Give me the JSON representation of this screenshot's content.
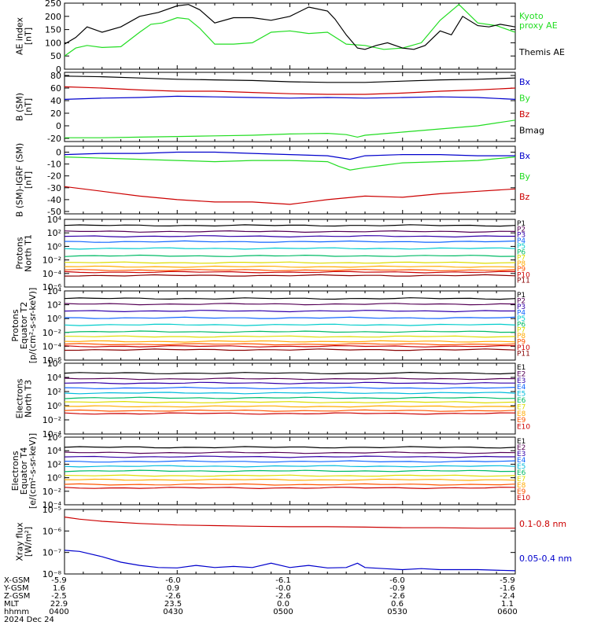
{
  "footer": {
    "date": "2024 Dec 24",
    "rows": [
      {
        "label": "X-GSM",
        "values": [
          "-5.9",
          "-6.0",
          "-6.1",
          "-6.0",
          "-5.9"
        ]
      },
      {
        "label": "Y-GSM",
        "values": [
          "1.6",
          "0.9",
          "-0.0",
          "-0.9",
          "-1.6"
        ]
      },
      {
        "label": "Z-GSM",
        "values": [
          "-2.5",
          "-2.6",
          "-2.6",
          "-2.6",
          "-2.4"
        ]
      },
      {
        "label": "MLT",
        "values": [
          "22.9",
          "23.5",
          "0.0",
          "0.6",
          "1.1"
        ]
      },
      {
        "label": "hhmm",
        "values": [
          "0400",
          "0430",
          "0500",
          "0530",
          "0600"
        ]
      }
    ]
  },
  "colors": {
    "black": "#000000",
    "green": "#22dd22",
    "blue": "#0000cc",
    "red": "#cc0000",
    "p_series": [
      "#000000",
      "#550055",
      "#3300aa",
      "#1166ff",
      "#00cccc",
      "#00bb66",
      "#dddd00",
      "#ffaa00",
      "#ff5500",
      "#cc0000",
      "#880000"
    ],
    "e_series": [
      "#000000",
      "#550055",
      "#3300aa",
      "#1166ff",
      "#00bbdd",
      "#00bb66",
      "#dddd00",
      "#ffaa00",
      "#ff5500",
      "#cc0000"
    ]
  },
  "chart_data": [
    {
      "id": "ae",
      "type": "line",
      "ylabel": [
        "AE index",
        "[nT]"
      ],
      "ylim": [
        0,
        250
      ],
      "yticks": [
        {
          "v": 0,
          "t": "0"
        },
        {
          "v": 50,
          "t": "50"
        },
        {
          "v": 100,
          "t": "100"
        },
        {
          "v": 150,
          "t": "150"
        },
        {
          "v": 200,
          "t": "200"
        },
        {
          "v": 250,
          "t": "250"
        }
      ],
      "legend_placement": "right",
      "series": [
        {
          "name": "Kyoto proxy AE",
          "color": "#22dd22",
          "legend": [
            "Kyoto",
            "proxy AE"
          ],
          "x": [
            240,
            243,
            246,
            250,
            255,
            260,
            263,
            266,
            270,
            273,
            276,
            280,
            285,
            290,
            295,
            300,
            305,
            310,
            315,
            320,
            325,
            330,
            335,
            340,
            345,
            350,
            355,
            360
          ],
          "y": [
            50,
            80,
            90,
            82,
            85,
            140,
            170,
            175,
            195,
            190,
            155,
            95,
            95,
            100,
            140,
            145,
            135,
            140,
            95,
            90,
            75,
            80,
            100,
            185,
            245,
            175,
            165,
            140
          ]
        },
        {
          "name": "Themis AE",
          "color": "#000000",
          "legend": [
            "Themis AE"
          ],
          "x": [
            240,
            243,
            246,
            250,
            255,
            260,
            265,
            270,
            273,
            276,
            280,
            285,
            290,
            295,
            300,
            305,
            310,
            312,
            315,
            318,
            320,
            323,
            326,
            330,
            333,
            336,
            340,
            343,
            346,
            350,
            353,
            356,
            360
          ],
          "y": [
            95,
            120,
            160,
            140,
            160,
            200,
            215,
            240,
            245,
            225,
            175,
            195,
            195,
            185,
            200,
            235,
            220,
            190,
            130,
            80,
            75,
            90,
            100,
            80,
            75,
            90,
            145,
            130,
            200,
            165,
            160,
            170,
            160
          ]
        }
      ]
    },
    {
      "id": "bsm",
      "type": "line",
      "ylabel": [
        "B (SM)",
        "[nT]"
      ],
      "ylim": [
        -25,
        85
      ],
      "yticks": [
        {
          "v": -20,
          "t": "-20"
        },
        {
          "v": 0,
          "t": "0"
        },
        {
          "v": 20,
          "t": "20"
        },
        {
          "v": 40,
          "t": "40"
        },
        {
          "v": 60,
          "t": "60"
        },
        {
          "v": 80,
          "t": "80"
        }
      ],
      "legend_placement": "right",
      "series": [
        {
          "name": "Bx",
          "color": "#0000cc",
          "x": [
            240,
            250,
            260,
            270,
            280,
            290,
            300,
            310,
            320,
            330,
            340,
            350,
            360
          ],
          "y": [
            42,
            44,
            45,
            47,
            46,
            45,
            44,
            45,
            44,
            45,
            46,
            45,
            42
          ]
        },
        {
          "name": "By",
          "color": "#22dd22",
          "x": [
            240,
            250,
            260,
            270,
            280,
            290,
            300,
            310,
            315,
            318,
            320,
            330,
            340,
            350,
            360
          ],
          "y": [
            -19,
            -19,
            -18,
            -17,
            -16,
            -15,
            -13,
            -12,
            -14,
            -18,
            -15,
            -10,
            -5,
            0,
            9
          ]
        },
        {
          "name": "Bz",
          "color": "#cc0000",
          "x": [
            240,
            250,
            260,
            270,
            280,
            290,
            300,
            310,
            320,
            330,
            340,
            350,
            360
          ],
          "y": [
            62,
            60,
            57,
            55,
            55,
            53,
            51,
            50,
            50,
            52,
            55,
            57,
            60
          ]
        },
        {
          "name": "Bmag",
          "color": "#000000",
          "x": [
            240,
            250,
            260,
            270,
            280,
            290,
            300,
            310,
            320,
            330,
            340,
            350,
            360
          ],
          "y": [
            79,
            78,
            76,
            74,
            73,
            72,
            70,
            69,
            69,
            71,
            73,
            74,
            76
          ]
        }
      ]
    },
    {
      "id": "bigrf",
      "type": "line",
      "ylabel": [
        "B (SM)-IGRF (SM)",
        "[nT]"
      ],
      "ylim": [
        -52,
        5
      ],
      "yticks": [
        {
          "v": -50,
          "t": "-50"
        },
        {
          "v": -40,
          "t": "-40"
        },
        {
          "v": -30,
          "t": "-30"
        },
        {
          "v": -20,
          "t": "-20"
        },
        {
          "v": -10,
          "t": "-10"
        },
        {
          "v": 0,
          "t": "0"
        }
      ],
      "legend_placement": "right",
      "series": [
        {
          "name": "Bx",
          "color": "#0000cc",
          "x": [
            240,
            250,
            260,
            270,
            280,
            290,
            300,
            310,
            316,
            320,
            330,
            340,
            350,
            360
          ],
          "y": [
            -2,
            -1,
            -1,
            0,
            0,
            -1,
            -2,
            -3,
            -6,
            -3,
            -2,
            -2,
            -3,
            -3
          ]
        },
        {
          "name": "By",
          "color": "#22dd22",
          "x": [
            240,
            250,
            260,
            270,
            280,
            290,
            300,
            310,
            313,
            316,
            320,
            325,
            330,
            340,
            350,
            360
          ],
          "y": [
            -4,
            -5,
            -6,
            -7,
            -8,
            -7,
            -7,
            -8,
            -12,
            -15,
            -13,
            -11,
            -9,
            -8,
            -7,
            -4
          ]
        },
        {
          "name": "Bz",
          "color": "#cc0000",
          "x": [
            240,
            250,
            260,
            270,
            280,
            290,
            300,
            310,
            320,
            330,
            340,
            350,
            360
          ],
          "y": [
            -29,
            -33,
            -37,
            -40,
            -42,
            -42,
            -44,
            -40,
            -37,
            -38,
            -35,
            -33,
            -31
          ]
        }
      ]
    },
    {
      "id": "p1",
      "type": "line",
      "yscale": "log",
      "ylabel": [
        "Protons",
        "North T1"
      ],
      "ylim": [
        -6,
        4
      ],
      "yticks": [
        {
          "v": 4,
          "t": "10⁴"
        },
        {
          "v": 2,
          "t": "10²"
        },
        {
          "v": 0,
          "t": "10⁰"
        },
        {
          "v": -2,
          "t": "10⁻²"
        },
        {
          "v": -4,
          "t": "10⁻⁴"
        },
        {
          "v": -6,
          "t": "10⁻⁶"
        }
      ],
      "legend_placement": "right",
      "series": [
        {
          "name": "P1",
          "color": "#000000",
          "level": 3.1
        },
        {
          "name": "P2",
          "color": "#550055",
          "level": 2.2
        },
        {
          "name": "P3",
          "color": "#3300aa",
          "level": 1.5
        },
        {
          "name": "P4",
          "color": "#1166ff",
          "level": 0.7
        },
        {
          "name": "P5",
          "color": "#00cccc",
          "level": -0.3
        },
        {
          "name": "P6",
          "color": "#00bb66",
          "level": -1.4
        },
        {
          "name": "P7",
          "color": "#dddd00",
          "level": -2.4
        },
        {
          "name": "P8",
          "color": "#ffaa00",
          "level": -3.0
        },
        {
          "name": "P9",
          "color": "#ff5500",
          "level": -3.5
        },
        {
          "name": "P10",
          "color": "#cc0000",
          "level": -3.8
        },
        {
          "name": "P11",
          "color": "#880000",
          "level": -4.3
        }
      ]
    },
    {
      "id": "p2",
      "type": "line",
      "yscale": "log",
      "ylabel": [
        "Protons",
        "Equator T2",
        "[p/(cm²-s-sr-keV)]"
      ],
      "ylim": [
        -6,
        4
      ],
      "yticks": [
        {
          "v": 4,
          "t": "10⁴"
        },
        {
          "v": 2,
          "t": "10²"
        },
        {
          "v": 0,
          "t": "10⁰"
        },
        {
          "v": -2,
          "t": "10⁻²"
        },
        {
          "v": -4,
          "t": "10⁻⁴"
        },
        {
          "v": -6,
          "t": "10⁻⁶"
        }
      ],
      "legend_placement": "right",
      "series": [
        {
          "name": "P1",
          "color": "#000000",
          "level": 2.9
        },
        {
          "name": "P2",
          "color": "#550055",
          "level": 2.1
        },
        {
          "name": "P3",
          "color": "#3300aa",
          "level": 1.1
        },
        {
          "name": "P4",
          "color": "#1166ff",
          "level": 0.1
        },
        {
          "name": "P5",
          "color": "#00cccc",
          "level": -0.9
        },
        {
          "name": "P6",
          "color": "#00bb66",
          "level": -1.9
        },
        {
          "name": "P7",
          "color": "#dddd00",
          "level": -2.6
        },
        {
          "name": "P8",
          "color": "#ffaa00",
          "level": -3.3
        },
        {
          "name": "P9",
          "color": "#ff5500",
          "level": -3.7
        },
        {
          "name": "P10",
          "color": "#cc0000",
          "level": -4.0
        },
        {
          "name": "P11",
          "color": "#880000",
          "level": -4.5
        }
      ]
    },
    {
      "id": "e3",
      "type": "line",
      "yscale": "log",
      "ylabel": [
        "Electrons",
        "North T3"
      ],
      "ylim": [
        -4,
        6
      ],
      "yticks": [
        {
          "v": 6,
          "t": "10⁶"
        },
        {
          "v": 4,
          "t": "10⁴"
        },
        {
          "v": 2,
          "t": "10²"
        },
        {
          "v": 0,
          "t": "10⁰"
        },
        {
          "v": -2,
          "t": "10⁻²"
        },
        {
          "v": -4,
          "t": "10⁻⁴"
        }
      ],
      "legend_placement": "right",
      "series": [
        {
          "name": "E1",
          "color": "#000000",
          "level": 4.6
        },
        {
          "name": "E2",
          "color": "#550055",
          "level": 3.8
        },
        {
          "name": "E3",
          "color": "#3300aa",
          "level": 3.2
        },
        {
          "name": "E4",
          "color": "#1166ff",
          "level": 2.5
        },
        {
          "name": "E5",
          "color": "#00bbdd",
          "level": 1.8
        },
        {
          "name": "E6",
          "color": "#00bb66",
          "level": 1.1
        },
        {
          "name": "E7",
          "color": "#dddd00",
          "level": 0.5
        },
        {
          "name": "E8",
          "color": "#ffaa00",
          "level": -0.1
        },
        {
          "name": "E9",
          "color": "#ff5500",
          "level": -0.7
        },
        {
          "name": "E10",
          "color": "#cc0000",
          "level": -1.1
        }
      ]
    },
    {
      "id": "e4",
      "type": "line",
      "yscale": "log",
      "ylabel": [
        "Electrons",
        "Equator T4",
        "[e/(cm²-s-sr-keV)]"
      ],
      "ylim": [
        -4,
        6
      ],
      "yticks": [
        {
          "v": 6,
          "t": "10⁶"
        },
        {
          "v": 4,
          "t": "10⁴"
        },
        {
          "v": 2,
          "t": "10²"
        },
        {
          "v": 0,
          "t": "10⁰"
        },
        {
          "v": -2,
          "t": "10⁻²"
        },
        {
          "v": -4,
          "t": "10⁻⁴"
        }
      ],
      "legend_placement": "right",
      "series": [
        {
          "name": "E1",
          "color": "#000000",
          "level": 4.5
        },
        {
          "name": "E2",
          "color": "#550055",
          "level": 3.7
        },
        {
          "name": "E3",
          "color": "#3300aa",
          "level": 3.1
        },
        {
          "name": "E4",
          "color": "#1166ff",
          "level": 2.4
        },
        {
          "name": "E5",
          "color": "#00bbdd",
          "level": 1.7
        },
        {
          "name": "E6",
          "color": "#00bb66",
          "level": 1.0
        },
        {
          "name": "E7",
          "color": "#dddd00",
          "level": 0.3
        },
        {
          "name": "E8",
          "color": "#ffaa00",
          "level": -0.3
        },
        {
          "name": "E9",
          "color": "#ff5500",
          "level": -1.0
        },
        {
          "name": "E10",
          "color": "#cc0000",
          "level": -1.5
        }
      ]
    },
    {
      "id": "xray",
      "type": "line",
      "yscale": "log",
      "ylabel": [
        "Xray flux",
        "[W/m²]"
      ],
      "ylim": [
        -8,
        -5
      ],
      "yticks": [
        {
          "v": -5,
          "t": "10⁻⁵"
        },
        {
          "v": -6,
          "t": "10⁻⁶"
        },
        {
          "v": -7,
          "t": "10⁻⁷"
        },
        {
          "v": -8,
          "t": "10⁻⁸"
        }
      ],
      "legend_placement": "right",
      "series": [
        {
          "name": "0.1-0.8 nm",
          "color": "#cc0000",
          "x": [
            240,
            244,
            250,
            260,
            270,
            280,
            290,
            300,
            310,
            320,
            330,
            340,
            350,
            360
          ],
          "y": [
            -5.35,
            -5.45,
            -5.55,
            -5.65,
            -5.72,
            -5.75,
            -5.78,
            -5.8,
            -5.8,
            -5.82,
            -5.85,
            -5.85,
            -5.87,
            -5.87
          ]
        },
        {
          "name": "0.05-0.4 nm",
          "color": "#0000cc",
          "x": [
            240,
            244,
            250,
            255,
            260,
            265,
            270,
            275,
            280,
            285,
            290,
            295,
            300,
            305,
            310,
            315,
            318,
            320,
            325,
            330,
            335,
            340,
            350,
            360
          ],
          "y": [
            -6.9,
            -6.95,
            -7.2,
            -7.45,
            -7.6,
            -7.7,
            -7.72,
            -7.6,
            -7.7,
            -7.65,
            -7.7,
            -7.5,
            -7.7,
            -7.6,
            -7.72,
            -7.7,
            -7.5,
            -7.7,
            -7.75,
            -7.8,
            -7.75,
            -7.8,
            -7.8,
            -7.85
          ]
        }
      ]
    }
  ]
}
